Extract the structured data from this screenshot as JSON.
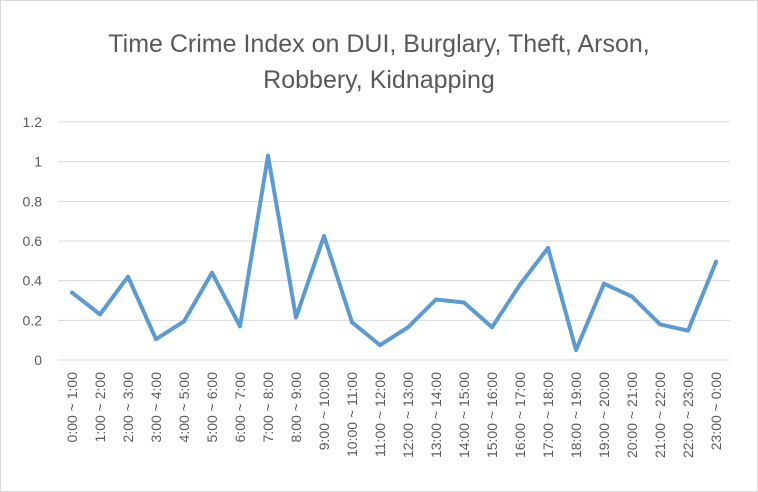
{
  "chart_data": {
    "type": "line",
    "title_lines": [
      "Time Crime Index on DUI, Burglary, Theft, Arson,",
      "Robbery, Kidnapping"
    ],
    "categories": [
      "0:00 ~ 1:00",
      "1:00 ~ 2:00",
      "2:00 ~ 3:00",
      "3:00 ~ 4:00",
      "4:00 ~ 5:00",
      "5:00 ~ 6:00",
      "6:00 ~ 7:00",
      "7:00 ~ 8:00",
      "8:00 ~ 9:00",
      "9:00 ~ 10:00",
      "10:00 ~ 11:00",
      "11:00 ~ 12:00",
      "12:00 ~ 13:00",
      "13:00 ~ 14:00",
      "14:00 ~ 15:00",
      "15:00 ~ 16:00",
      "16:00 ~ 17:00",
      "17:00 ~ 18:00",
      "18:00 ~ 19:00",
      "19:00 ~ 20:00",
      "20:00 ~ 21:00",
      "21:00 ~ 22:00",
      "22:00 ~ 23:00",
      "23:00 ~ 0:00"
    ],
    "series": [
      {
        "values": [
          0.34,
          0.23,
          0.42,
          0.105,
          0.195,
          0.44,
          0.17,
          1.03,
          0.215,
          0.625,
          0.19,
          0.075,
          0.165,
          0.305,
          0.29,
          0.165,
          0.38,
          0.565,
          0.05,
          0.385,
          0.32,
          0.18,
          0.148,
          0.495
        ]
      }
    ],
    "yticks": [
      "0",
      "0.2",
      "0.4",
      "0.6",
      "0.8",
      "1",
      "1.2"
    ],
    "ylim": [
      0,
      1.2
    ],
    "grid": true,
    "legend": "none",
    "colors": {
      "line": "#5b9bd5",
      "grid": "#d9d9d9",
      "text": "#595959"
    }
  }
}
